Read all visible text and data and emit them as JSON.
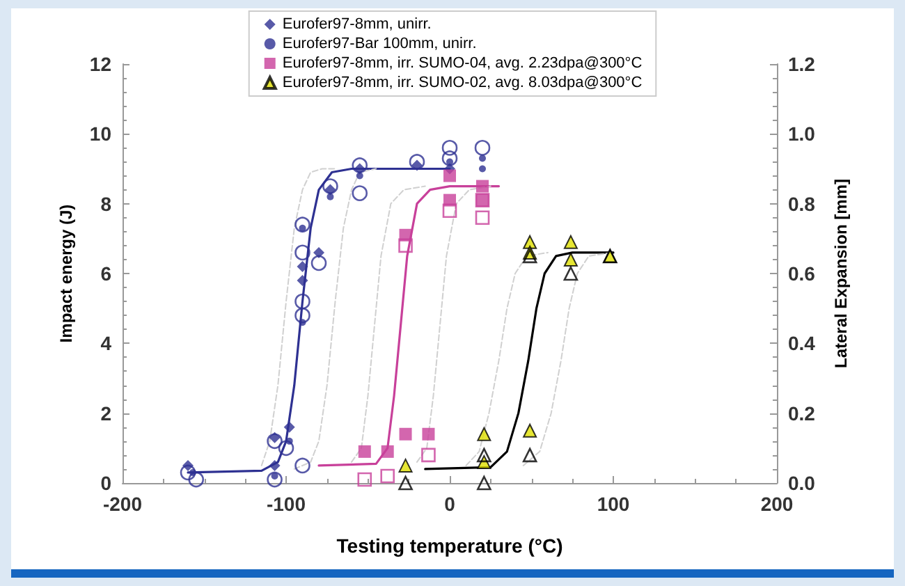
{
  "chart_data": {
    "type": "scatter",
    "xlabel": "Testing temperature (°C)",
    "ylabel": "Impact energy (J)",
    "y2label": "Lateral Expansion [mm]",
    "xlim": [
      -200,
      200
    ],
    "xticks": [
      -200,
      -100,
      0,
      100,
      200
    ],
    "ylim": [
      0,
      12
    ],
    "yticks": [
      0,
      2,
      4,
      6,
      8,
      10,
      12
    ],
    "y2lim": [
      0,
      1.2
    ],
    "y2ticks": [
      {
        "value": 0,
        "label": "0.0"
      },
      0.2,
      0.4,
      0.6,
      0.8,
      {
        "value": 1,
        "label": "1.0"
      },
      1.2
    ],
    "grid": false,
    "legend": "top",
    "series": [
      {
        "name": "Eurofer97-8mm, unirr.",
        "color": "#2e3192",
        "marker": "diamond",
        "x": [
          -160,
          -107,
          -107,
          -98,
          -90,
          -90,
          -80,
          -73,
          -55,
          -20,
          0
        ],
        "values": [
          0.5,
          0.5,
          1.3,
          1.6,
          6.2,
          5.8,
          6.6,
          8.4,
          9.0,
          9.1,
          9.0
        ]
      },
      {
        "name": "Eurofer97-Bar 100mm, unirr.",
        "color": "#2e3192",
        "marker": "circle",
        "x": [
          -157,
          -107,
          -98,
          -90,
          -90,
          -73,
          -55,
          0,
          20,
          20
        ],
        "values": [
          0.3,
          0.2,
          1.2,
          4.6,
          7.3,
          8.2,
          8.8,
          9.2,
          9.0,
          9.3
        ]
      },
      {
        "name": "Eurofer97-8mm, irr. SUMO-04, avg. 2.23dpa@300°C",
        "color": "#c8409a",
        "marker": "square",
        "x": [
          -52,
          -38,
          -27,
          -13,
          -27,
          0,
          0,
          20,
          20
        ],
        "values": [
          0.9,
          0.9,
          1.4,
          1.4,
          7.1,
          8.8,
          8.1,
          8.5,
          8.1
        ]
      },
      {
        "name": "Eurofer97-8mm, irr. SUMO-02, avg. 8.03dpa@300°C",
        "color": "#e0e000",
        "marker": "triangle",
        "x": [
          -27,
          21,
          21,
          49,
          49,
          49,
          74,
          74,
          98
        ],
        "values": [
          0.5,
          1.4,
          0.6,
          1.5,
          6.9,
          6.6,
          6.9,
          6.4,
          6.5
        ]
      },
      {
        "color": "#2e3192",
        "marker": "circle",
        "axis": "y2",
        "x": [
          -160,
          -155,
          -107,
          -107,
          -100,
          -90,
          -90,
          -90,
          -90,
          -90,
          -80,
          -73,
          -55,
          -55,
          -20,
          0,
          0,
          20
        ],
        "values": [
          0.03,
          0.01,
          0.01,
          0.12,
          0.1,
          0.05,
          0.74,
          0.52,
          0.48,
          0.66,
          0.63,
          0.85,
          0.91,
          0.83,
          0.92,
          0.96,
          0.93,
          0.96
        ]
      },
      {
        "color": "#c8409a",
        "marker": "square",
        "axis": "y2",
        "x": [
          -52,
          -38,
          -13,
          -27,
          0,
          20,
          20
        ],
        "values": [
          0.01,
          0.02,
          0.08,
          0.68,
          0.78,
          0.76,
          0.81
        ]
      },
      {
        "color": "#000000",
        "marker": "triangle",
        "axis": "y2",
        "x": [
          -27,
          21,
          21,
          49,
          49,
          74,
          98
        ],
        "values": [
          0.0,
          0.08,
          0.0,
          0.08,
          0.65,
          0.6,
          0.65
        ]
      },
      {
        "type": "line",
        "color": "#2e3192",
        "marker": "none",
        "x": [
          -160,
          -115,
          -105,
          -100,
          -95,
          -90,
          -85,
          -80,
          -72,
          -60,
          0
        ],
        "values": [
          0.3,
          0.35,
          0.6,
          1.2,
          2.8,
          5.2,
          7.3,
          8.4,
          8.9,
          9.0,
          9.0
        ]
      },
      {
        "type": "line",
        "color": "#c8409a",
        "marker": "none",
        "x": [
          -80,
          -45,
          -38,
          -34,
          -30,
          -26,
          -20,
          -12,
          0,
          30
        ],
        "values": [
          0.5,
          0.55,
          1.0,
          2.5,
          4.5,
          6.5,
          8.0,
          8.4,
          8.5,
          8.5
        ]
      },
      {
        "type": "line",
        "color": "#000000",
        "marker": "none",
        "x": [
          -15,
          25,
          35,
          42,
          48,
          53,
          58,
          65,
          75,
          100
        ],
        "values": [
          0.4,
          0.45,
          0.9,
          2.0,
          3.5,
          5.0,
          6.0,
          6.5,
          6.6,
          6.6
        ]
      },
      {
        "type": "line",
        "color": "#d0d0d0",
        "marker": "none",
        "line_style": "dashed",
        "x": [
          -115,
          -110,
          -105,
          -100,
          -95,
          -90,
          -85,
          -78,
          -70
        ],
        "values": [
          0.5,
          1.2,
          2.8,
          5.2,
          7.3,
          8.4,
          8.9,
          9.0,
          9.0
        ]
      },
      {
        "type": "line",
        "color": "#d0d0d0",
        "marker": "none",
        "line_style": "dashed",
        "x": [
          -95,
          -85,
          -80,
          -75,
          -70,
          -65,
          -60,
          -55,
          -45
        ],
        "values": [
          0.4,
          0.6,
          1.2,
          2.8,
          5.2,
          7.3,
          8.4,
          8.9,
          9.0
        ]
      },
      {
        "type": "line",
        "color": "#d0d0d0",
        "marker": "none",
        "line_style": "dashed",
        "x": [
          -60,
          -54,
          -50,
          -46,
          -42,
          -36,
          -28,
          -15
        ],
        "values": [
          0.6,
          1.0,
          2.5,
          4.5,
          6.5,
          8.0,
          8.4,
          8.5
        ]
      },
      {
        "type": "line",
        "color": "#d0d0d0",
        "marker": "none",
        "line_style": "dashed",
        "x": [
          -20,
          -14,
          -10,
          -6,
          -2,
          4,
          12,
          25
        ],
        "values": [
          0.6,
          1.0,
          2.5,
          4.5,
          6.5,
          8.0,
          8.4,
          8.5
        ]
      },
      {
        "type": "line",
        "color": "#d0d0d0",
        "marker": "none",
        "line_style": "dashed",
        "x": [
          10,
          18,
          24,
          30,
          35,
          40,
          47,
          60
        ],
        "values": [
          0.5,
          0.9,
          2.0,
          3.5,
          5.0,
          6.0,
          6.5,
          6.6
        ]
      },
      {
        "type": "line",
        "color": "#d0d0d0",
        "marker": "none",
        "line_style": "dashed",
        "x": [
          45,
          55,
          62,
          68,
          73,
          78,
          85,
          100
        ],
        "values": [
          0.5,
          0.9,
          2.0,
          3.5,
          5.0,
          6.0,
          6.5,
          6.6
        ]
      }
    ]
  }
}
